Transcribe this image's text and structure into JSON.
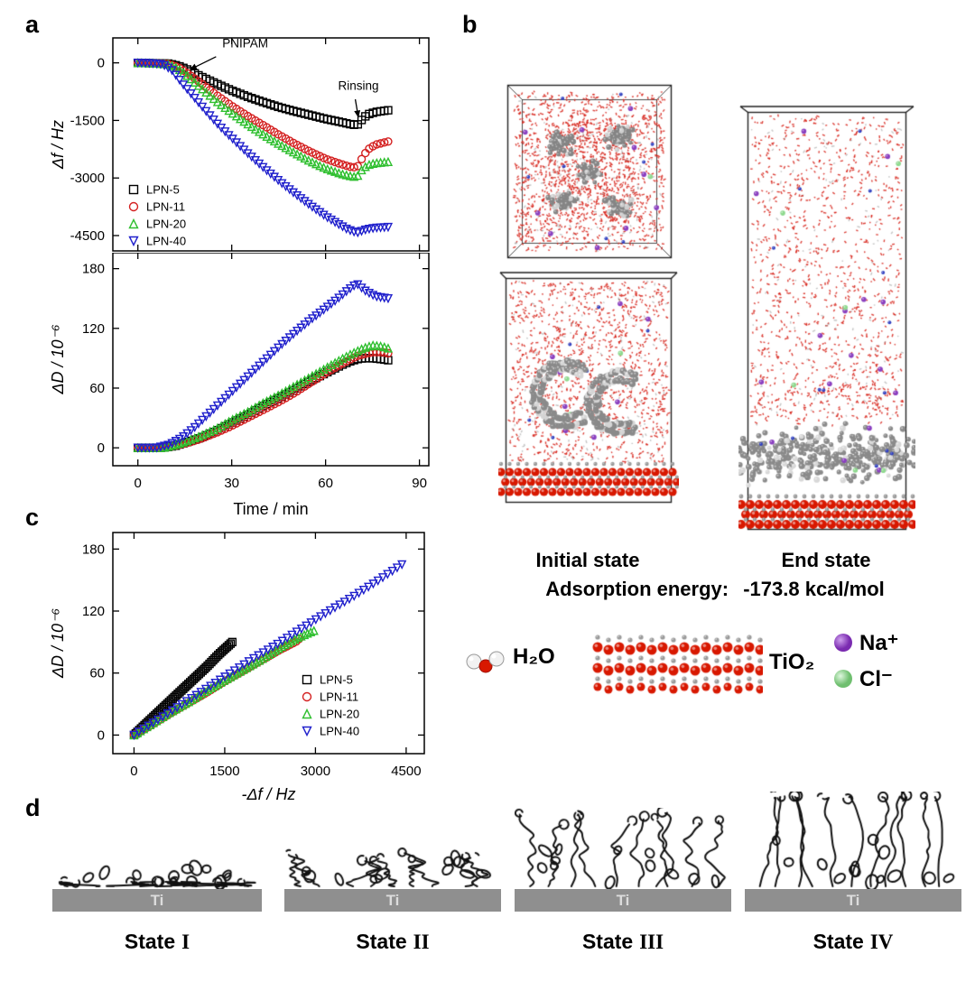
{
  "panels": {
    "a": "a",
    "b": "b",
    "c": "c",
    "d": "d"
  },
  "colors": {
    "lpn5": "#000000",
    "lpn11": "#d42020",
    "lpn20": "#2fbf2f",
    "lpn40": "#2020cc",
    "tio2_red": "#d81800",
    "atom_gray": "#8a8a8a",
    "sodium": "#8a3fc0",
    "chloride": "#8fd98f"
  },
  "chart_data": [
    {
      "id": "freq_vs_time",
      "type": "scatter",
      "title": "",
      "xlabel": "",
      "ylabel": "Δf / Hz",
      "xlim": [
        -8,
        93
      ],
      "ylim": [
        -4900,
        650
      ],
      "xticks": [
        0,
        30,
        60,
        90
      ],
      "yticks": [
        0,
        -1500,
        -3000,
        -4500
      ],
      "legend_position": "lower-left",
      "annotations": [
        {
          "text": "PNIPAM",
          "tx": 27,
          "ty": 400,
          "x1": 25,
          "y1": 160,
          "x2": 16.5,
          "y2": -180
        },
        {
          "text": "Rinsing",
          "tx": 64,
          "ty": -700,
          "x1": 69.5,
          "y1": -950,
          "x2": 70.5,
          "y2": -1430
        }
      ],
      "series": [
        {
          "name": "LPN-5",
          "marker": "square",
          "color_key": "lpn5",
          "points": [
            [
              0,
              0
            ],
            [
              5,
              -10
            ],
            [
              10,
              -20
            ],
            [
              13,
              -80
            ],
            [
              16,
              -180
            ],
            [
              20,
              -350
            ],
            [
              25,
              -540
            ],
            [
              30,
              -720
            ],
            [
              35,
              -880
            ],
            [
              40,
              -1020
            ],
            [
              45,
              -1150
            ],
            [
              50,
              -1260
            ],
            [
              55,
              -1360
            ],
            [
              60,
              -1460
            ],
            [
              65,
              -1545
            ],
            [
              68,
              -1600
            ],
            [
              70,
              -1625
            ],
            [
              71,
              -1550
            ],
            [
              72,
              -1430
            ],
            [
              74,
              -1330
            ],
            [
              76,
              -1280
            ],
            [
              80,
              -1235
            ]
          ]
        },
        {
          "name": "LPN-11",
          "marker": "circle",
          "color_key": "lpn11",
          "points": [
            [
              0,
              0
            ],
            [
              5,
              -10
            ],
            [
              10,
              -30
            ],
            [
              13,
              -120
            ],
            [
              16,
              -280
            ],
            [
              20,
              -520
            ],
            [
              25,
              -830
            ],
            [
              30,
              -1120
            ],
            [
              35,
              -1380
            ],
            [
              40,
              -1620
            ],
            [
              45,
              -1870
            ],
            [
              50,
              -2100
            ],
            [
              55,
              -2310
            ],
            [
              60,
              -2500
            ],
            [
              65,
              -2640
            ],
            [
              68,
              -2710
            ],
            [
              70,
              -2730
            ],
            [
              71,
              -2600
            ],
            [
              72,
              -2420
            ],
            [
              74,
              -2230
            ],
            [
              76,
              -2130
            ],
            [
              80,
              -2050
            ]
          ]
        },
        {
          "name": "LPN-20",
          "marker": "triangle-up",
          "color_key": "lpn20",
          "points": [
            [
              0,
              0
            ],
            [
              5,
              -10
            ],
            [
              10,
              -40
            ],
            [
              13,
              -160
            ],
            [
              16,
              -350
            ],
            [
              20,
              -640
            ],
            [
              25,
              -990
            ],
            [
              30,
              -1300
            ],
            [
              35,
              -1590
            ],
            [
              40,
              -1860
            ],
            [
              45,
              -2110
            ],
            [
              50,
              -2340
            ],
            [
              55,
              -2560
            ],
            [
              60,
              -2750
            ],
            [
              65,
              -2890
            ],
            [
              68,
              -2950
            ],
            [
              70,
              -2975
            ],
            [
              71,
              -2850
            ],
            [
              72,
              -2740
            ],
            [
              74,
              -2650
            ],
            [
              76,
              -2610
            ],
            [
              80,
              -2580
            ]
          ]
        },
        {
          "name": "LPN-40",
          "marker": "triangle-down",
          "color_key": "lpn40",
          "points": [
            [
              0,
              0
            ],
            [
              4,
              -10
            ],
            [
              8,
              -40
            ],
            [
              11,
              -200
            ],
            [
              14,
              -520
            ],
            [
              18,
              -900
            ],
            [
              22,
              -1280
            ],
            [
              26,
              -1640
            ],
            [
              30,
              -1960
            ],
            [
              35,
              -2350
            ],
            [
              40,
              -2720
            ],
            [
              45,
              -3070
            ],
            [
              50,
              -3400
            ],
            [
              55,
              -3710
            ],
            [
              60,
              -4000
            ],
            [
              64,
              -4200
            ],
            [
              67,
              -4340
            ],
            [
              70,
              -4430
            ],
            [
              71,
              -4400
            ],
            [
              73,
              -4340
            ],
            [
              76,
              -4300
            ],
            [
              80,
              -4280
            ]
          ]
        }
      ]
    },
    {
      "id": "diss_vs_time",
      "type": "scatter",
      "title": "",
      "xlabel": "Time / min",
      "ylabel": "ΔD / 10⁻⁶",
      "xlim": [
        -8,
        93
      ],
      "ylim": [
        -18,
        196
      ],
      "xticks": [
        0,
        30,
        60,
        90
      ],
      "yticks": [
        0,
        60,
        120,
        180
      ],
      "series": [
        {
          "name": "LPN-5",
          "marker": "square",
          "color_key": "lpn5",
          "points": [
            [
              0,
              0
            ],
            [
              8,
              0
            ],
            [
              12,
              2
            ],
            [
              16,
              6
            ],
            [
              20,
              10
            ],
            [
              25,
              17
            ],
            [
              30,
              25
            ],
            [
              35,
              33
            ],
            [
              40,
              42
            ],
            [
              45,
              50
            ],
            [
              50,
              58
            ],
            [
              55,
              67
            ],
            [
              60,
              75
            ],
            [
              65,
              83
            ],
            [
              68,
              87
            ],
            [
              70,
              89
            ],
            [
              72,
              90
            ],
            [
              75,
              90
            ],
            [
              78,
              89
            ],
            [
              80,
              88
            ]
          ]
        },
        {
          "name": "LPN-11",
          "marker": "circle",
          "color_key": "lpn11",
          "points": [
            [
              0,
              0
            ],
            [
              8,
              0
            ],
            [
              12,
              2
            ],
            [
              16,
              5
            ],
            [
              20,
              9
            ],
            [
              25,
              15
            ],
            [
              30,
              22
            ],
            [
              35,
              30
            ],
            [
              40,
              38
            ],
            [
              45,
              46
            ],
            [
              50,
              55
            ],
            [
              55,
              65
            ],
            [
              60,
              75
            ],
            [
              65,
              84
            ],
            [
              68,
              89
            ],
            [
              70,
              92
            ],
            [
              72,
              94
            ],
            [
              75,
              96
            ],
            [
              78,
              96
            ],
            [
              80,
              95
            ]
          ]
        },
        {
          "name": "LPN-20",
          "marker": "triangle-up",
          "color_key": "lpn20",
          "points": [
            [
              0,
              0
            ],
            [
              8,
              0
            ],
            [
              12,
              3
            ],
            [
              16,
              7
            ],
            [
              20,
              12
            ],
            [
              25,
              19
            ],
            [
              30,
              28
            ],
            [
              35,
              36
            ],
            [
              40,
              45
            ],
            [
              45,
              53
            ],
            [
              50,
              62
            ],
            [
              55,
              71
            ],
            [
              60,
              80
            ],
            [
              65,
              89
            ],
            [
              68,
              94
            ],
            [
              70,
              97
            ],
            [
              72,
              100
            ],
            [
              75,
              103
            ],
            [
              78,
              102
            ],
            [
              80,
              100
            ]
          ]
        },
        {
          "name": "LPN-40",
          "marker": "triangle-down",
          "color_key": "lpn40",
          "points": [
            [
              0,
              0
            ],
            [
              6,
              0
            ],
            [
              10,
              3
            ],
            [
              14,
              10
            ],
            [
              18,
              20
            ],
            [
              22,
              32
            ],
            [
              26,
              44
            ],
            [
              30,
              56
            ],
            [
              35,
              71
            ],
            [
              40,
              86
            ],
            [
              45,
              101
            ],
            [
              50,
              115
            ],
            [
              55,
              128
            ],
            [
              60,
              140
            ],
            [
              64,
              150
            ],
            [
              67,
              158
            ],
            [
              70,
              165
            ],
            [
              71,
              162
            ],
            [
              73,
              157
            ],
            [
              76,
              152
            ],
            [
              80,
              150
            ]
          ]
        }
      ]
    },
    {
      "id": "diss_vs_freq",
      "type": "scatter",
      "title": "",
      "xlabel": "-Δf / Hz",
      "ylabel": "ΔD / 10⁻⁶",
      "xlim": [
        -350,
        4800
      ],
      "ylim": [
        -18,
        196
      ],
      "xticks": [
        0,
        1500,
        3000,
        4500
      ],
      "yticks": [
        0,
        60,
        120,
        180
      ],
      "legend_position": "lower-right",
      "series": [
        {
          "name": "LPN-5",
          "marker": "square",
          "color_key": "lpn5",
          "points": [
            [
              0,
              0
            ],
            [
              200,
              11
            ],
            [
              400,
              22
            ],
            [
              600,
              33
            ],
            [
              800,
              44
            ],
            [
              1000,
              55
            ],
            [
              1200,
              66
            ],
            [
              1400,
              78
            ],
            [
              1550,
              86
            ],
            [
              1625,
              90
            ]
          ]
        },
        {
          "name": "LPN-11",
          "marker": "circle",
          "color_key": "lpn11",
          "points": [
            [
              0,
              0
            ],
            [
              300,
              10
            ],
            [
              600,
              21
            ],
            [
              900,
              31
            ],
            [
              1200,
              41
            ],
            [
              1500,
              52
            ],
            [
              1800,
              62
            ],
            [
              2100,
              72
            ],
            [
              2400,
              82
            ],
            [
              2700,
              91
            ],
            [
              2730,
              93
            ]
          ]
        },
        {
          "name": "LPN-20",
          "marker": "triangle-up",
          "color_key": "lpn20",
          "points": [
            [
              0,
              0
            ],
            [
              300,
              11
            ],
            [
              600,
              22
            ],
            [
              900,
              32
            ],
            [
              1200,
              43
            ],
            [
              1500,
              53
            ],
            [
              1800,
              63
            ],
            [
              2100,
              73
            ],
            [
              2400,
              84
            ],
            [
              2700,
              94
            ],
            [
              2975,
              101
            ]
          ]
        },
        {
          "name": "LPN-40",
          "marker": "triangle-down",
          "color_key": "lpn40",
          "points": [
            [
              0,
              0
            ],
            [
              400,
              15
            ],
            [
              800,
              30
            ],
            [
              1200,
              45
            ],
            [
              1600,
              60
            ],
            [
              2000,
              75
            ],
            [
              2400,
              89
            ],
            [
              2800,
              104
            ],
            [
              3200,
              119
            ],
            [
              3600,
              133
            ],
            [
              4000,
              148
            ],
            [
              4430,
              165
            ]
          ]
        }
      ]
    }
  ],
  "panel_b": {
    "initial_label": "Initial state",
    "end_label": "End state",
    "adsorption_label": "Adsorption energy:",
    "adsorption_value": "-173.8 kcal/mol",
    "legend": {
      "water": "H₂O",
      "tio2": "TiO₂",
      "sodium": "Na⁺",
      "chloride": "Cl⁻"
    }
  },
  "panel_d": {
    "bar_label": "Ti",
    "states": [
      {
        "name": "State",
        "numeral": "I"
      },
      {
        "name": "State",
        "numeral": "II"
      },
      {
        "name": "State",
        "numeral": "III"
      },
      {
        "name": "State",
        "numeral": "IV"
      }
    ]
  }
}
